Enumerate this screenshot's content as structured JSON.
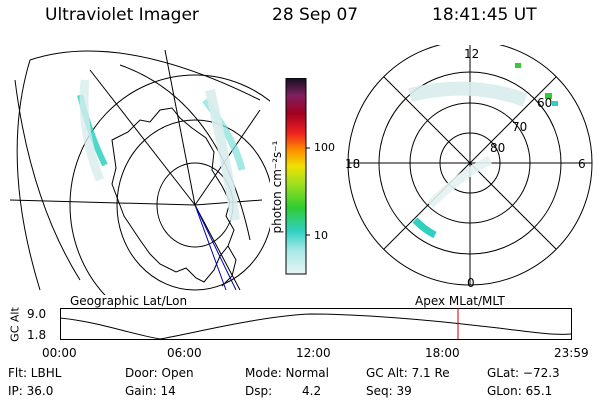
{
  "header": {
    "title": "Ultraviolet Imager",
    "date": "28 Sep 07",
    "time": "18:41:45 UT"
  },
  "colorbar": {
    "label": "photon cm⁻²s⁻¹",
    "ticks": [
      "100",
      "10"
    ]
  },
  "polar_plot": {
    "mlt_labels": {
      "top": "12",
      "bottom": "0",
      "left": "18",
      "right": "6"
    },
    "lat_labels": [
      "60",
      "70",
      "80"
    ]
  },
  "projection_labels": {
    "left": "Geographic Lat/Lon",
    "right": "Apex MLat/MLT"
  },
  "timeline": {
    "axis_title": "GC Alt",
    "y_ticks": [
      "9.0",
      "1.8"
    ],
    "x_ticks": [
      "00:00",
      "06:00",
      "12:00",
      "18:00",
      "23:59"
    ],
    "current_time_marker": "18:41"
  },
  "info": {
    "flt": "Flt: LBHL",
    "door": "Door: Open",
    "mode": "Mode: Normal",
    "gc_alt": "GC Alt: 7.1 Re",
    "glat": "GLat: −72.3",
    "ip": "IP: 36.0",
    "gain": "Gain: 14",
    "dsp_label": "Dsp:",
    "dsp_value": "4.2",
    "seq": "Seq: 39",
    "glon": "GLon:  65.1"
  },
  "colors": {
    "aurora_bright": "#2fd0c0",
    "aurora_green": "#33cc33",
    "aurora_faint": "#d8ecec",
    "marker": "#cc0000",
    "track": "#0000aa"
  }
}
